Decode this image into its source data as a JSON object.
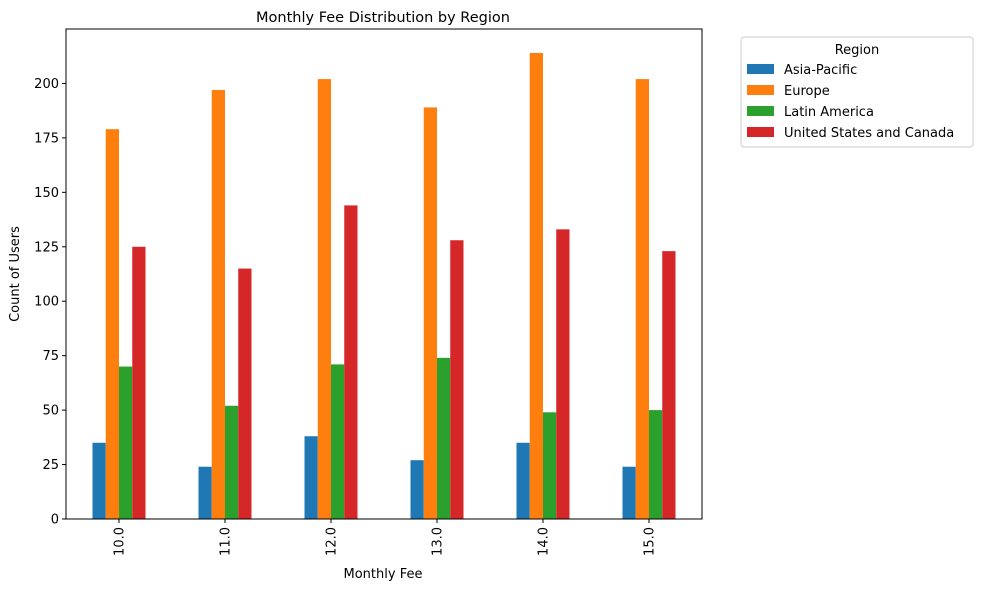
{
  "chart_data": {
    "type": "bar",
    "title": "Monthly Fee Distribution by Region",
    "xlabel": "Monthly Fee",
    "ylabel": "Count of Users",
    "categories": [
      "10.0",
      "11.0",
      "12.0",
      "13.0",
      "14.0",
      "15.0"
    ],
    "ylim": [
      0,
      225
    ],
    "yticks": [
      0,
      25,
      50,
      75,
      100,
      125,
      150,
      175,
      200
    ],
    "grid": false,
    "legend": {
      "title": "Region",
      "placement": "outside-top-right"
    },
    "series": [
      {
        "name": "Asia-Pacific",
        "color": "#1f77b4",
        "values": [
          35,
          24,
          38,
          27,
          35,
          24
        ]
      },
      {
        "name": "Europe",
        "color": "#ff7f0e",
        "values": [
          179,
          197,
          202,
          189,
          214,
          202
        ]
      },
      {
        "name": "Latin America",
        "color": "#2ca02c",
        "values": [
          70,
          52,
          71,
          74,
          49,
          50
        ]
      },
      {
        "name": "United States and Canada",
        "color": "#d62728",
        "values": [
          125,
          115,
          144,
          128,
          133,
          123
        ]
      }
    ]
  }
}
